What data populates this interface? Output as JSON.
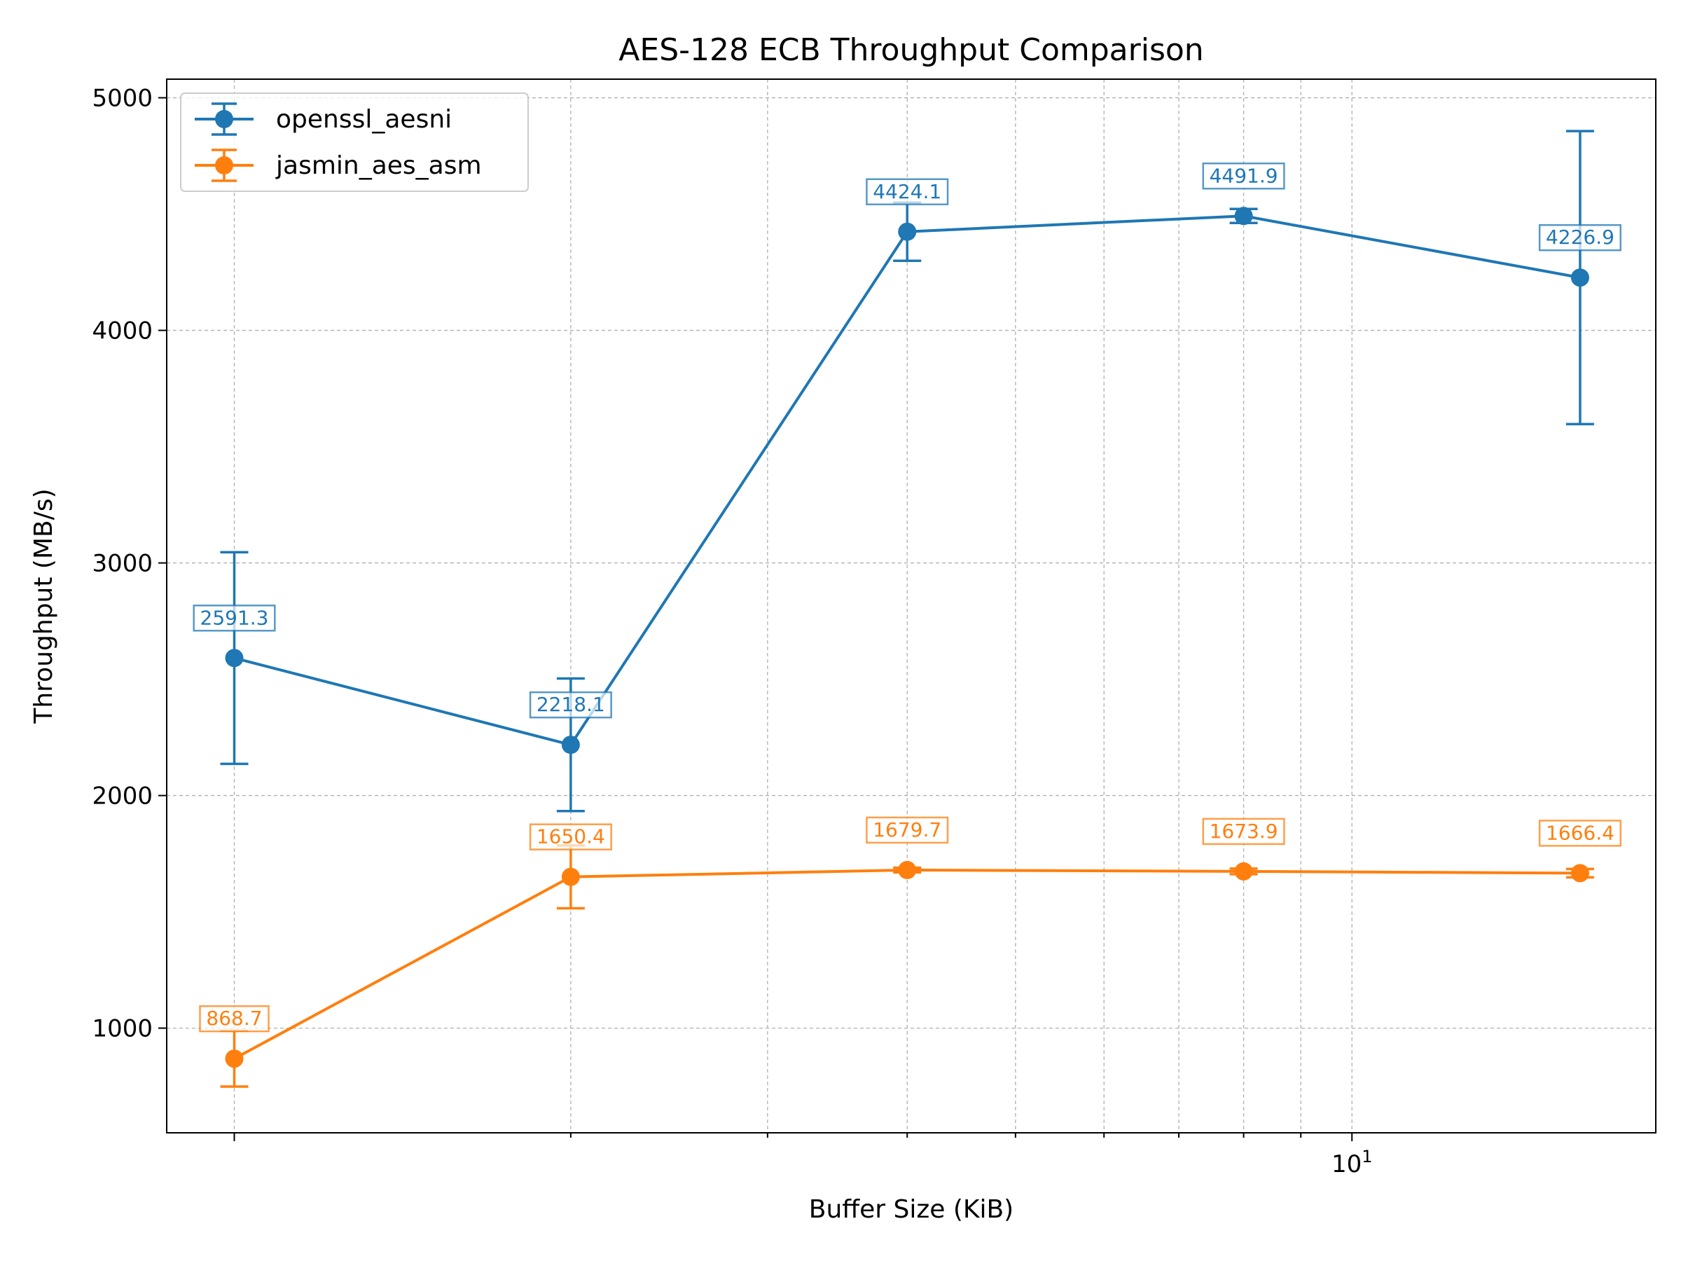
{
  "chart_data": {
    "type": "line",
    "title": "AES-128 ECB Throughput Comparison",
    "xlabel": "Buffer Size (KiB)",
    "ylabel": "Throughput (MB/s)",
    "x_scale": "log",
    "x": [
      1,
      2,
      4,
      8,
      16
    ],
    "xlim": [
      0.87,
      18.7
    ],
    "ylim": [
      550,
      5080
    ],
    "x_tick_labels": [
      "10^1"
    ],
    "y_ticks": [
      1000,
      2000,
      3000,
      4000,
      5000
    ],
    "grid": true,
    "legend_position": "top-left",
    "series": [
      {
        "name": "openssl_aesni",
        "color": "#1f77b4",
        "values": [
          2591.3,
          2218.1,
          4424.1,
          4491.9,
          4226.9
        ],
        "errors": [
          455,
          285,
          125,
          30,
          630
        ],
        "labels": [
          "2591.3",
          "2218.1",
          "4424.1",
          "4491.9",
          "4226.9"
        ]
      },
      {
        "name": "jasmin_aes_asm",
        "color": "#ff7f0e",
        "values": [
          868.7,
          1650.4,
          1679.7,
          1673.9,
          1666.4
        ],
        "errors": [
          120,
          135,
          10,
          12,
          18
        ],
        "labels": [
          "868.7",
          "1650.4",
          "1679.7",
          "1673.9",
          "1666.4"
        ]
      }
    ]
  }
}
